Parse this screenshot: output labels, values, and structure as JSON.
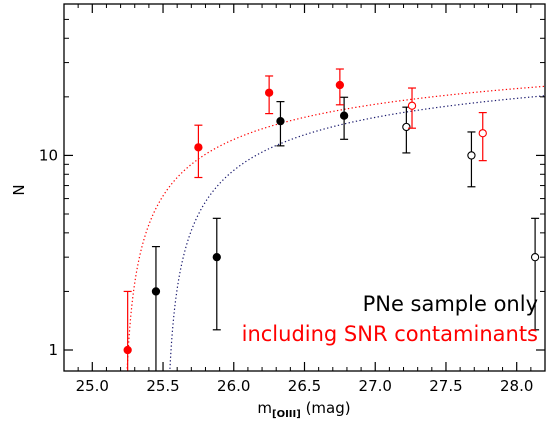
{
  "chart_data": {
    "type": "scatter",
    "title": "",
    "xlabel_main": "m",
    "xlabel_sub": "[OIII]",
    "xlabel_unit": " (mag)",
    "ylabel": "N",
    "xlim": [
      24.8,
      28.2
    ],
    "ylim": [
      0.78,
      60
    ],
    "yscale": "log",
    "x_ticks": [
      25.0,
      25.5,
      26.0,
      26.5,
      27.0,
      27.5,
      28.0
    ],
    "x_tick_labels": [
      "25.0",
      "25.5",
      "26.0",
      "26.5",
      "27.0",
      "27.5",
      "28.0"
    ],
    "y_ticks": [
      1,
      10
    ],
    "y_tick_labels": [
      "1",
      "10"
    ],
    "colors": {
      "pne": "#000000",
      "snr": "#ff0000",
      "pne_fit": "#1a1a6e",
      "snr_fit": "#ff0000"
    },
    "series": [
      {
        "name": "PNe sample only",
        "color": "#000000",
        "points": [
          {
            "x": 25.45,
            "y": 2,
            "ylo": 0.62,
            "yhi": 3.4,
            "filled": true
          },
          {
            "x": 25.88,
            "y": 3,
            "ylo": 1.27,
            "yhi": 4.75,
            "filled": true
          },
          {
            "x": 26.33,
            "y": 15,
            "ylo": 11.2,
            "yhi": 18.9,
            "filled": true
          },
          {
            "x": 26.78,
            "y": 16,
            "ylo": 12.1,
            "yhi": 19.9,
            "filled": true
          },
          {
            "x": 27.22,
            "y": 14,
            "ylo": 10.3,
            "yhi": 17.7,
            "filled": false
          },
          {
            "x": 27.68,
            "y": 10,
            "ylo": 6.9,
            "yhi": 13.2,
            "filled": false
          },
          {
            "x": 28.13,
            "y": 3,
            "ylo": 1.27,
            "yhi": 4.75,
            "filled": false
          }
        ]
      },
      {
        "name": "including SNR contaminants",
        "color": "#ff0000",
        "points": [
          {
            "x": 25.25,
            "y": 1,
            "ylo": 0.7,
            "yhi": 2.0,
            "filled": true
          },
          {
            "x": 25.75,
            "y": 11,
            "ylo": 7.7,
            "yhi": 14.3,
            "filled": true
          },
          {
            "x": 26.25,
            "y": 21,
            "ylo": 16.4,
            "yhi": 25.6,
            "filled": true
          },
          {
            "x": 26.75,
            "y": 23,
            "ylo": 18.2,
            "yhi": 27.8,
            "filled": true
          },
          {
            "x": 27.26,
            "y": 18,
            "ylo": 13.8,
            "yhi": 22.2,
            "filled": false
          },
          {
            "x": 27.76,
            "y": 13,
            "ylo": 9.4,
            "yhi": 16.6,
            "filled": false
          }
        ]
      }
    ],
    "fits": [
      {
        "series": "PNe sample only",
        "color": "#1a1a6e",
        "style": "dotted",
        "mstar": 25.52,
        "amp": 20.5,
        "c": 0.307
      },
      {
        "series": "including SNR contaminants",
        "color": "#ff0000",
        "style": "dotted",
        "mstar": 25.22,
        "amp": 22.0,
        "c": 0.307
      }
    ],
    "legend": {
      "placement": "bottom-right",
      "entries": [
        {
          "text": "PNe sample only",
          "color": "#000000"
        },
        {
          "text": "including SNR contaminants",
          "color": "#ff0000"
        }
      ]
    }
  }
}
